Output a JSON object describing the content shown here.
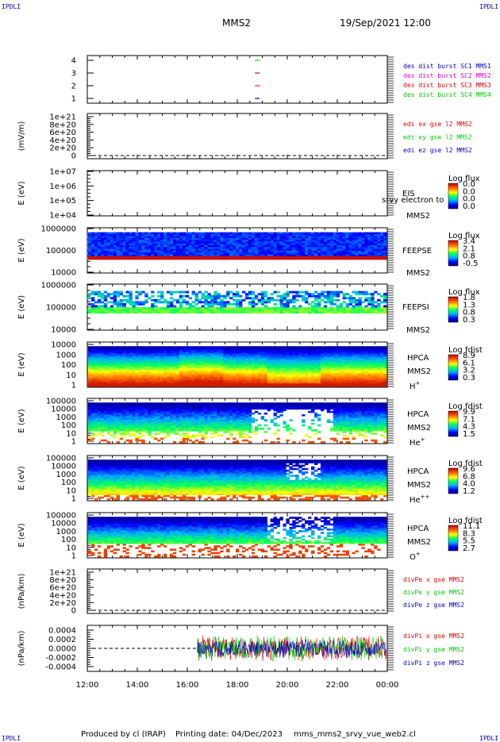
{
  "header": {
    "corner_left": "IPDLI",
    "corner_right": "IPDLI",
    "spacecraft": "MMS2",
    "datetime": "19/Sep/2021 12:00"
  },
  "footer": {
    "producer": "Produced by cl (IRAP)",
    "printing": "Printing date: 04/Dec/2023",
    "file": "mms_mms2_srvy_vue_web2.cl",
    "corner_left": "IPDLI",
    "corner_right": "IPDLI"
  },
  "colors": {
    "red": "#e00000",
    "green": "#00cc00",
    "blue": "#0000cc",
    "magenta": "#dd00dd"
  },
  "chart_data": [
    {
      "type": "scatter",
      "id": "burst",
      "yticks": [
        "4",
        "3",
        "2",
        "1"
      ],
      "legend": [
        {
          "label": "des dist burst SC1 MMS1",
          "color": "#0000cc"
        },
        {
          "label": "des dist burst SC2 MMS2",
          "color": "#dd00dd"
        },
        {
          "label": "des dist burst SC3 MMS3",
          "color": "#e00000"
        },
        {
          "label": "des dist burst SC4 MMS4",
          "color": "#00cc00"
        }
      ],
      "markers": [
        {
          "sc": 4,
          "time_h": 18.8,
          "color": "#00cc00"
        },
        {
          "sc": 3,
          "time_h": 18.8,
          "color": "#e00000"
        },
        {
          "sc": 2,
          "time_h": 18.8,
          "color": "#dd00dd"
        },
        {
          "sc": 1,
          "time_h": 18.8,
          "color": "#0000cc"
        }
      ]
    },
    {
      "type": "line",
      "id": "edi",
      "ylabel": "(mV/m)",
      "yticks": [
        "1e+21",
        "8e+20",
        "6e+20",
        "4e+20",
        "2e+20",
        "0"
      ],
      "legend": [
        {
          "label": "edi ex gse l2 MMS2",
          "color": "#e00000"
        },
        {
          "label": "edi ey gse l2 MMS2",
          "color": "#00cc00"
        },
        {
          "label": "edi ez gse l2 MMS2",
          "color": "#0000cc"
        }
      ]
    },
    {
      "type": "heatmap",
      "id": "eis",
      "ylabel": "E (eV)",
      "yticks": [
        "1e+07",
        "1e+06",
        "1e+05",
        "1e+04"
      ],
      "labels": [
        "EIS",
        "MMS2"
      ],
      "overlay": "srvy electron to",
      "cbar_title": "Log flux",
      "cbar_ticks": [
        "0.0",
        "0.0",
        "0.0",
        "0.0"
      ]
    },
    {
      "type": "heatmap",
      "id": "feepse",
      "ylabel": "E (eV)",
      "yticks": [
        "1000000",
        "100000",
        "10000"
      ],
      "labels": [
        "FEEPSE",
        "MMS2"
      ],
      "cbar_title": "Log flux",
      "cbar_ticks": [
        "3.4",
        "2.1",
        "0.8",
        "-0.5"
      ]
    },
    {
      "type": "heatmap",
      "id": "feepsi",
      "ylabel": "E (eV)",
      "yticks": [
        "1000000",
        "100000",
        "10000"
      ],
      "labels": [
        "FEEPSI",
        "MMS2"
      ],
      "cbar_title": "Log flux",
      "cbar_ticks": [
        "1.8",
        "1.3",
        "0.8",
        "0.3"
      ]
    },
    {
      "type": "heatmap",
      "id": "hpca-h",
      "ylabel": "E (eV)",
      "yticks": [
        "10000",
        "1000",
        "100",
        "10",
        "1"
      ],
      "labels": [
        "HPCA",
        "MMS2"
      ],
      "species": "H",
      "species_charge": "+",
      "cbar_title": "Log fdist",
      "cbar_ticks": [
        "8.9",
        "6.1",
        "3.2",
        "0.3"
      ]
    },
    {
      "type": "heatmap",
      "id": "hpca-he",
      "ylabel": "E (eV)",
      "yticks": [
        "100000",
        "10000",
        "1000",
        "100",
        "10",
        "1"
      ],
      "labels": [
        "HPCA",
        "MMS2"
      ],
      "species": "He",
      "species_charge": "+",
      "cbar_title": "Log fdist",
      "cbar_ticks": [
        "9.9",
        "7.1",
        "4.3",
        "1.5"
      ]
    },
    {
      "type": "heatmap",
      "id": "hpca-he2",
      "ylabel": "E (eV)",
      "yticks": [
        "100000",
        "10000",
        "1000",
        "100",
        "10",
        "1"
      ],
      "labels": [
        "HPCA",
        "MMS2"
      ],
      "species": "He",
      "species_charge": "++",
      "cbar_title": "Log fdist",
      "cbar_ticks": [
        "9.6",
        "6.8",
        "4.0",
        "1.2"
      ]
    },
    {
      "type": "heatmap",
      "id": "hpca-o",
      "ylabel": "E (eV)",
      "yticks": [
        "100000",
        "10000",
        "1000",
        "100",
        "10",
        "1"
      ],
      "labels": [
        "HPCA",
        "MMS2"
      ],
      "species": "O",
      "species_charge": "+",
      "cbar_title": "Log fdist",
      "cbar_ticks": [
        "11.1",
        "8.3",
        "5.5",
        "2.7"
      ]
    },
    {
      "type": "line",
      "id": "divpe",
      "ylabel": "(nPa/km)",
      "yticks": [
        "1e+21",
        "8e+20",
        "6e+20",
        "4e+20",
        "2e+20",
        "0"
      ],
      "legend": [
        {
          "label": "divPe x gse MMS2",
          "color": "#e00000"
        },
        {
          "label": "divPe y gse MMS2",
          "color": "#00cc00"
        },
        {
          "label": "divPe z gse MMS2",
          "color": "#0000cc"
        }
      ]
    },
    {
      "type": "line",
      "id": "divpi",
      "ylabel": "(nPa/km)",
      "yticks": [
        "0.0004",
        "0.0002",
        "0.0000",
        "-0.0002",
        "-0.0004"
      ],
      "ylim": [
        -0.0005,
        0.0005
      ],
      "data_start_h": 16.4,
      "legend": [
        {
          "label": "divPi x gse MMS2",
          "color": "#e00000"
        },
        {
          "label": "divPi y gse MMS2",
          "color": "#00cc00"
        },
        {
          "label": "divPi z gse MMS2",
          "color": "#0000cc"
        }
      ]
    }
  ],
  "xaxis": {
    "range_h": [
      12,
      24
    ],
    "ticks": [
      "12:00",
      "14:00",
      "16:00",
      "18:00",
      "20:00",
      "22:00",
      "00:00"
    ]
  }
}
